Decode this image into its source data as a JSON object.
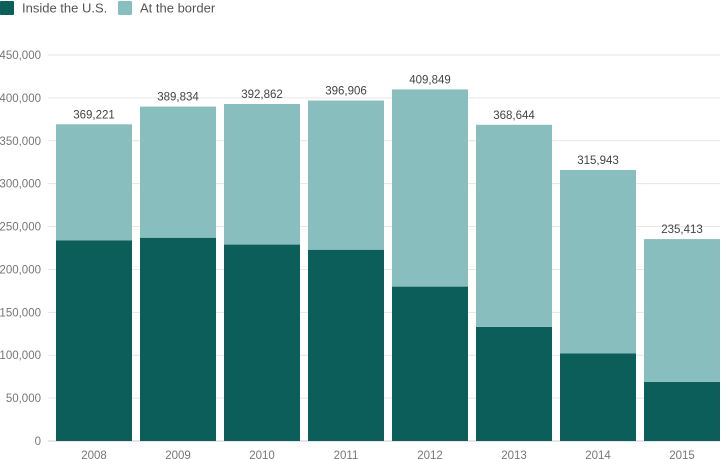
{
  "chart_data": {
    "type": "bar",
    "stacked": true,
    "categories": [
      "2008",
      "2009",
      "2010",
      "2011",
      "2012",
      "2013",
      "2014",
      "2015"
    ],
    "series": [
      {
        "name": "Inside the U.S.",
        "color": "#0b5e5a",
        "values": [
          234000,
          237000,
          229000,
          223000,
          180000,
          133000,
          102000,
          69000
        ]
      },
      {
        "name": "At the border",
        "color": "#88bfbe",
        "values": [
          135221,
          152834,
          163862,
          173906,
          229849,
          235644,
          213943,
          166413
        ]
      }
    ],
    "totals": [
      369221,
      389834,
      392862,
      396906,
      409849,
      368644,
      315943,
      235413
    ],
    "total_labels": [
      "369,221",
      "389,834",
      "392,862",
      "396,906",
      "409,849",
      "368,644",
      "315,943",
      "235,413"
    ],
    "y_ticks": [
      0,
      50000,
      100000,
      150000,
      200000,
      250000,
      300000,
      350000,
      400000,
      450000
    ],
    "y_tick_labels": [
      "0",
      "50,000",
      "100,000",
      "150,000",
      "200,000",
      "250,000",
      "300,000",
      "350,000",
      "400,000",
      "450,000"
    ],
    "ylim": [
      0,
      450000
    ],
    "title": "",
    "xlabel": "",
    "ylabel": "",
    "grid": true,
    "legend_position": "top-left"
  }
}
